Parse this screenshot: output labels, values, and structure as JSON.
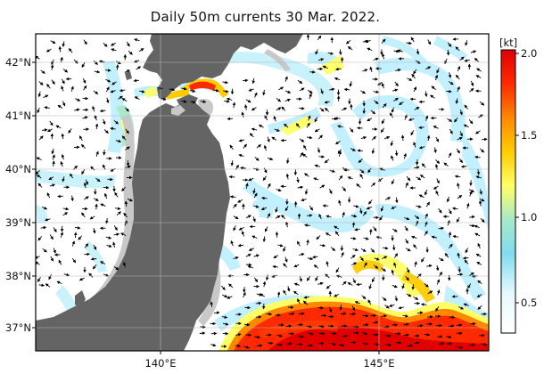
{
  "title": "Daily 50m currents 30 Mar. 2022.",
  "map": {
    "lat_labels": [
      "42°N",
      "41°N",
      "40°N",
      "39°N",
      "38°N",
      "37°N"
    ],
    "lon_labels": [
      "140°E",
      "145°E"
    ],
    "lon_range": [
      136.5,
      148.5
    ],
    "lat_range": [
      36.5,
      42.7
    ]
  },
  "colorbar": {
    "unit": "[kt]",
    "ticks": [
      "2.0",
      "1.5",
      "1.0",
      "0.5"
    ],
    "range": [
      0.25,
      2.0
    ],
    "colors": [
      "#ffffff",
      "#bff0ff",
      "#7fdcef",
      "#a8e8c8",
      "#ffff66",
      "#ffcc00",
      "#ff8800",
      "#ff2a00",
      "#e00000"
    ]
  },
  "colors": {
    "land": "#646464",
    "land_shelf": "#c8c8c8",
    "arrow": "#000000",
    "grid": "#b4b4b4"
  }
}
